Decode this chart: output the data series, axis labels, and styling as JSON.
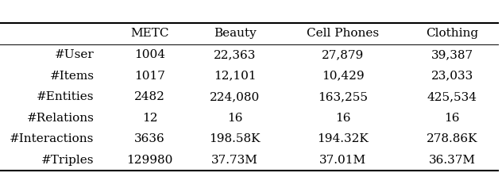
{
  "columns": [
    "",
    "METC",
    "Beauty",
    "Cell Phones",
    "Clothing"
  ],
  "rows": [
    [
      "#User",
      "1004",
      "22,363",
      "27,879",
      "39,387"
    ],
    [
      "#Items",
      "1017",
      "12,101",
      "10,429",
      "23,033"
    ],
    [
      "#Entities",
      "2482",
      "224,080",
      "163,255",
      "425,534"
    ],
    [
      "#Relations",
      "12",
      "16",
      "16",
      "16"
    ],
    [
      "#Interactions",
      "3636",
      "198.58K",
      "194.32K",
      "278.86K"
    ],
    [
      "#Triples",
      "129980",
      "37.73M",
      "37.01M",
      "36.37M"
    ]
  ],
  "background_color": "#ffffff",
  "text_color": "#000000",
  "fontsize": 11.0,
  "figsize": [
    6.32,
    2.42
  ],
  "dpi": 100,
  "thick_lw": 1.5,
  "thin_lw": 0.7
}
